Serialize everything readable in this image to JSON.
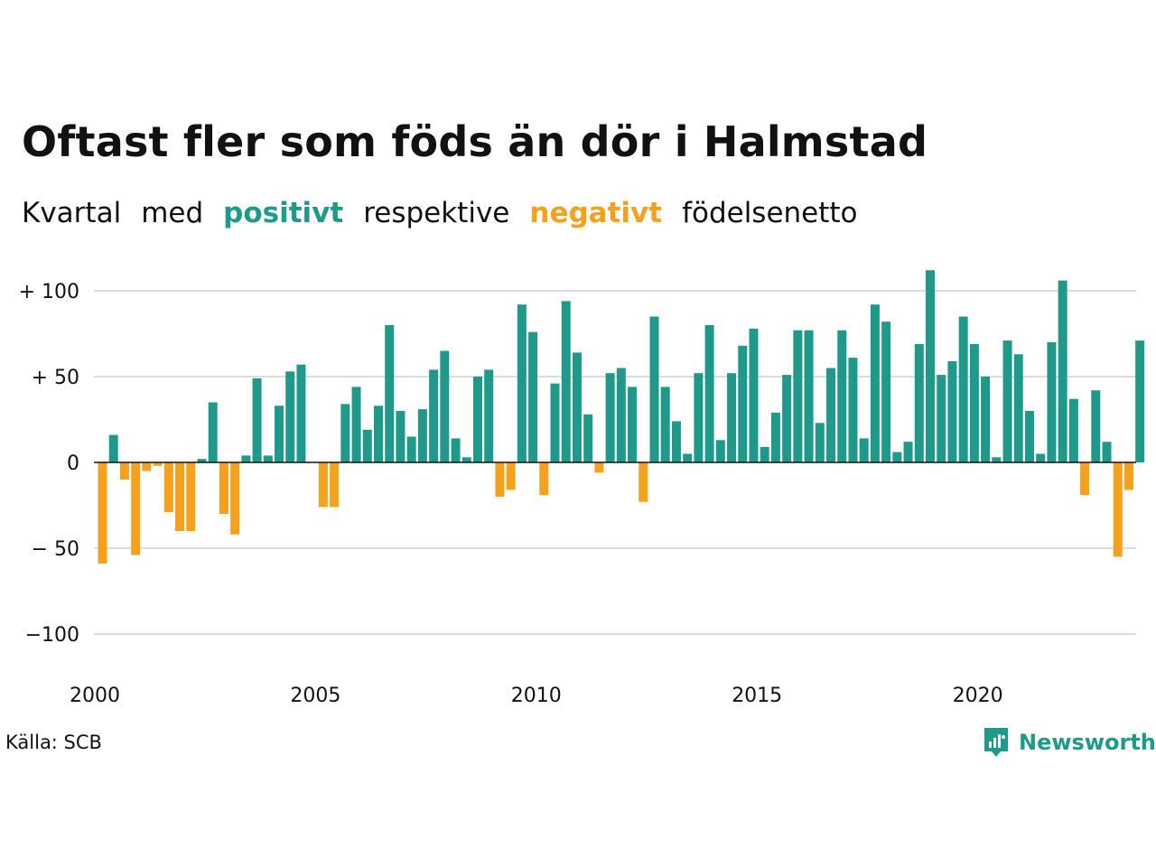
{
  "title": "Oftast fler som föds än dör i Halmstad",
  "subtitle": {
    "w1": "Kvartal",
    "w2": "med",
    "positive": "positivt",
    "w3": "respektive",
    "negative": "negativt",
    "w4": "födelsenetto"
  },
  "colors": {
    "positive": "#1f9a8a",
    "negative": "#f5a11c",
    "grid": "#dddddd",
    "zero": "#111111"
  },
  "source": "Källa: SCB",
  "logo": {
    "text": "Newsworthy",
    "icon": "newsworthy-chart-icon"
  },
  "chart_data": {
    "type": "bar",
    "x_start": "2000 Q1",
    "x_tick_labels": [
      "2000",
      "2005",
      "2010",
      "2015",
      "2020"
    ],
    "y_tick_labels": [
      "+ 100",
      "+  50",
      "0",
      "− 50",
      "−100"
    ],
    "y_ticks": [
      100,
      50,
      0,
      -50,
      -100
    ],
    "ylim": [
      -120,
      112
    ],
    "grid": true,
    "values": [
      -59,
      16,
      -10,
      -54,
      -5,
      -2,
      -29,
      -40,
      -40,
      2,
      35,
      -30,
      -42,
      4,
      49,
      4,
      33,
      53,
      57,
      0,
      -26,
      -26,
      34,
      44,
      19,
      33,
      80,
      30,
      15,
      31,
      54,
      65,
      14,
      3,
      50,
      54,
      -20,
      -16,
      92,
      76,
      -19,
      46,
      94,
      64,
      28,
      -6,
      52,
      55,
      44,
      -23,
      85,
      44,
      24,
      5,
      52,
      80,
      13,
      52,
      68,
      78,
      9,
      29,
      51,
      77,
      77,
      23,
      55,
      77,
      61,
      14,
      92,
      82,
      6,
      12,
      69,
      112,
      51,
      59,
      85,
      69,
      50,
      3,
      71,
      63,
      30,
      5,
      70,
      106,
      37,
      -19,
      42,
      12,
      -55,
      -16,
      71
    ]
  }
}
